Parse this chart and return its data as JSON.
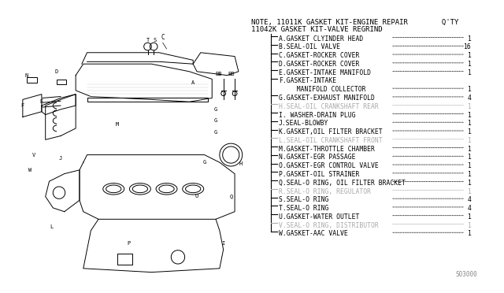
{
  "background_color": "#ffffff",
  "diagram_color": "#000000",
  "light_gray": "#aaaaaa",
  "title_line1": "NOTE, 11011K GASKET KIT-ENGINE REPAIR        Q'TY",
  "title_line2": "11042K GASKET KIT-VALVE REGRIND",
  "parts": [
    {
      "label": "A.GASKET CLYINDER HEAD",
      "qty": "1",
      "gray": false
    },
    {
      "label": "B.SEAL-OIL VALVE",
      "qty": "16",
      "gray": false
    },
    {
      "label": "C.GASKET-ROCKER COVER",
      "qty": "1",
      "gray": false
    },
    {
      "label": "D.GASKET-ROCKER COVER",
      "qty": "1",
      "gray": false
    },
    {
      "label": "E.GASKET-INTAKE MANIFOLD",
      "qty": "1",
      "gray": false
    },
    {
      "label": "F.GASKET-INTAKE",
      "qty": "",
      "gray": false
    },
    {
      "label": "  MANIFOLD COLLECTOR",
      "qty": "1",
      "gray": false
    },
    {
      "label": "G.GASKET-EXHAUST MANIFOLD",
      "qty": "4",
      "gray": false
    },
    {
      "label": "H.SEAL-OIL CRANKSHAFT REAR",
      "qty": "1",
      "gray": true
    },
    {
      "label": "I. WASHER-DRAIN PLUG",
      "qty": "1",
      "gray": false
    },
    {
      "label": "J.SEAL-BLOWBY",
      "qty": "1",
      "gray": false
    },
    {
      "label": "K.GASKET,OIL FILTER BRACKET",
      "qty": "1",
      "gray": false
    },
    {
      "label": "L.SEAL-OIL CRANKSHAFT FRONT",
      "qty": "1",
      "gray": true
    },
    {
      "label": "M.GASKET-THROTTLE CHAMBER",
      "qty": "1",
      "gray": false
    },
    {
      "label": "N.GASKET-EGR PASSAGE",
      "qty": "1",
      "gray": false
    },
    {
      "label": "O.GASKET-EGR CONTROL VALVE",
      "qty": "1",
      "gray": false
    },
    {
      "label": "P.GASKET-OIL STRAINER",
      "qty": "1",
      "gray": false
    },
    {
      "label": "Q.SEAL-O RING, OIL FILTER BRACKET",
      "qty": "1",
      "gray": false
    },
    {
      "label": "R.SEAL-O RING, REGULATOR",
      "qty": "1",
      "gray": true
    },
    {
      "label": "S.SEAL-O RING",
      "qty": "4",
      "gray": false
    },
    {
      "label": "T.SEAL-O RING",
      "qty": "4",
      "gray": false
    },
    {
      "label": "U.GASKET-WATER OUTLET",
      "qty": "1",
      "gray": false
    },
    {
      "label": "V.SEAL-O RING, DISTRIBUTOR",
      "qty": "1",
      "gray": true
    },
    {
      "label": "W.GASKET-AAC VALVE",
      "qty": "1",
      "gray": false
    }
  ],
  "part_number": "S03000",
  "font_size_title": 6.5,
  "font_size_parts": 5.8,
  "font_size_partnum": 5.5
}
